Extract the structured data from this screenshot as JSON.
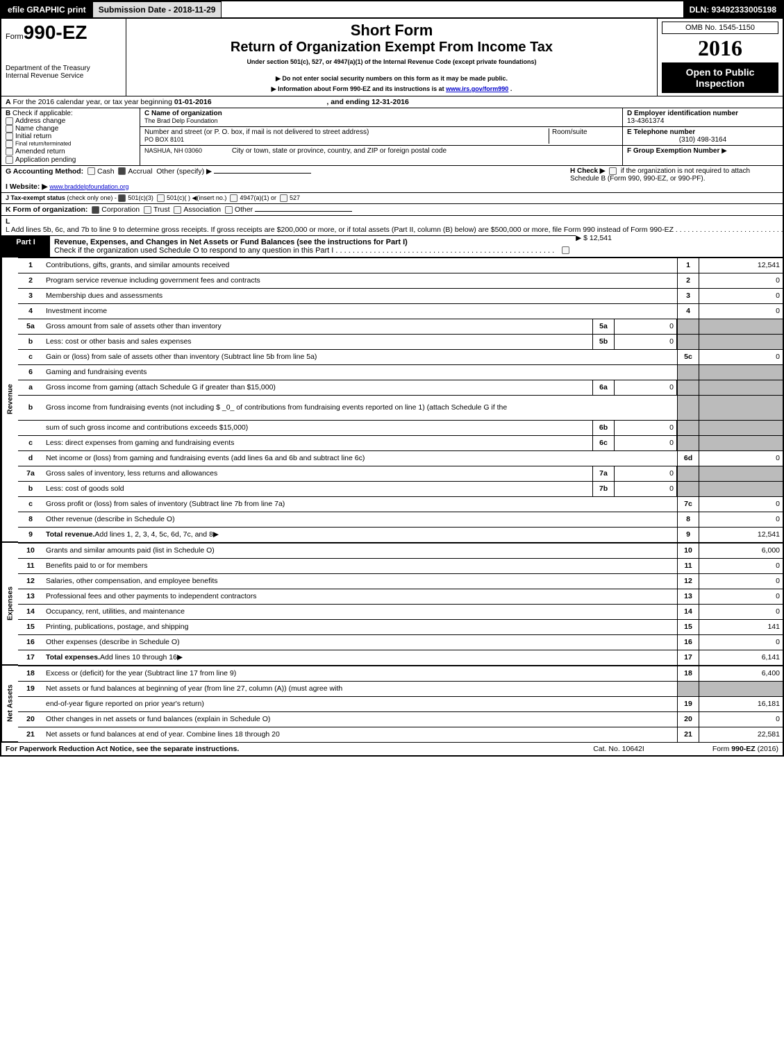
{
  "topbar": {
    "efile": "efile GRAPHIC print",
    "submission": "Submission Date - 2018-11-29",
    "dln": "DLN: 93492333005198"
  },
  "header": {
    "form_prefix": "Form",
    "form_no": "990-EZ",
    "short_form": "Short Form",
    "title": "Return of Organization Exempt From Income Tax",
    "under_section": "Under section 501(c), 527, or 4947(a)(1) of the Internal Revenue Code (except private foundations)",
    "donot": "Do not enter social security numbers on this form as it may be made public.",
    "info": "Information about Form 990-EZ and its instructions is at ",
    "info_link": "www.irs.gov/form990",
    "info_suffix": ".",
    "dept1": "Department of the Treasury",
    "dept2": "Internal Revenue Service",
    "omb": "OMB No. 1545-1150",
    "year": "2016",
    "open": "Open to Public Inspection"
  },
  "line_a": {
    "text_pre": "For the 2016 calendar year, or tax year beginning ",
    "begin": "01-01-2016",
    "mid": ", and ending ",
    "end": "12-31-2016"
  },
  "b": {
    "label": "Check if applicable:",
    "opts": [
      "Address change",
      "Name change",
      "Initial return",
      "Final return/terminated",
      "Amended return",
      "Application pending"
    ]
  },
  "c": {
    "label": "C Name of organization",
    "org": "The Brad Delp Foundation",
    "street_label": "Number and street (or P. O. box, if mail is not delivered to street address)",
    "room_label": "Room/suite",
    "street": "PO BOX 8101",
    "city_label": "City or town, state or province, country, and ZIP or foreign postal code",
    "city": "NASHUA, NH  03060"
  },
  "d": {
    "label": "D Employer identification number",
    "value": "13-4361374"
  },
  "e": {
    "label": "E Telephone number",
    "value": "(310) 498-3164"
  },
  "f": {
    "label": "F Group Exemption Number",
    "arrow": "▶"
  },
  "g": {
    "label": "G Accounting Method:",
    "cash": "Cash",
    "accrual": "Accrual",
    "other": "Other (specify) ▶"
  },
  "h": {
    "label_pre": "H  Check ▶",
    "label_post": "if the organization is not required to attach Schedule B (Form 990, 990-EZ, or 990-PF)."
  },
  "i": {
    "label": "I Website: ▶",
    "value": "www.braddelpfoundation.org"
  },
  "j": {
    "label": "J Tax-exempt status",
    "note": "(check only one) - ",
    "opts": [
      "501(c)(3)",
      "501(c)(  ) ◀(insert no.)",
      "4947(a)(1) or",
      "527"
    ]
  },
  "k": {
    "label": "K Form of organization:",
    "opts": [
      "Corporation",
      "Trust",
      "Association",
      "Other"
    ]
  },
  "l": {
    "text": "L Add lines 5b, 6c, and 7b to line 9 to determine gross receipts. If gross receipts are $200,000 or more, or if total assets (Part II, column (B) below) are $500,000 or more, file Form 990 instead of Form 990-EZ",
    "amount": "▶ $ 12,541"
  },
  "part1": {
    "label": "Part I",
    "title": "Revenue, Expenses, and Changes in Net Assets or Fund Balances (see the instructions for Part I)",
    "check": "Check if the organization used Schedule O to respond to any question in this Part I"
  },
  "sections": {
    "revenue": "Revenue",
    "expenses": "Expenses",
    "netassets": "Net Assets"
  },
  "lines": [
    {
      "n": "1",
      "d": "Contributions, gifts, grants, and similar amounts received",
      "rn": "1",
      "rv": "12,541"
    },
    {
      "n": "2",
      "d": "Program service revenue including government fees and contracts",
      "rn": "2",
      "rv": "0"
    },
    {
      "n": "3",
      "d": "Membership dues and assessments",
      "rn": "3",
      "rv": "0"
    },
    {
      "n": "4",
      "d": "Investment income",
      "rn": "4",
      "rv": "0"
    },
    {
      "n": "5a",
      "d": "Gross amount from sale of assets other than inventory",
      "mn": "5a",
      "mv": "0",
      "shade": true
    },
    {
      "n": "b",
      "d": "Less: cost or other basis and sales expenses",
      "mn": "5b",
      "mv": "0",
      "shade": true
    },
    {
      "n": "c",
      "d": "Gain or (loss) from sale of assets other than inventory (Subtract line 5b from line 5a)",
      "rn": "5c",
      "rv": "0"
    },
    {
      "n": "6",
      "d": "Gaming and fundraising events",
      "shade": true,
      "shaderight": true
    },
    {
      "n": "a",
      "d": "Gross income from gaming (attach Schedule G if greater than $15,000)",
      "mn": "6a",
      "mv": "0",
      "shade": true
    },
    {
      "n": "b",
      "d": "Gross income from fundraising events (not including $ _0_ of contributions from fundraising events reported on line 1) (attach Schedule G if the",
      "shade": true,
      "tall": true
    },
    {
      "n": "",
      "d": "sum of such gross income and contributions exceeds $15,000)",
      "mn": "6b",
      "mv": "0",
      "shade": true
    },
    {
      "n": "c",
      "d": "Less: direct expenses from gaming and fundraising events",
      "mn": "6c",
      "mv": "0",
      "shade": true
    },
    {
      "n": "d",
      "d": "Net income or (loss) from gaming and fundraising events (add lines 6a and 6b and subtract line 6c)",
      "rn": "6d",
      "rv": "0"
    },
    {
      "n": "7a",
      "d": "Gross sales of inventory, less returns and allowances",
      "mn": "7a",
      "mv": "0",
      "shade": true
    },
    {
      "n": "b",
      "d": "Less: cost of goods sold",
      "mn": "7b",
      "mv": "0",
      "shade": true
    },
    {
      "n": "c",
      "d": "Gross profit or (loss) from sales of inventory (Subtract line 7b from line 7a)",
      "rn": "7c",
      "rv": "0"
    },
    {
      "n": "8",
      "d": "Other revenue (describe in Schedule O)",
      "rn": "8",
      "rv": "0"
    },
    {
      "n": "9",
      "d": "Total revenue. Add lines 1, 2, 3, 4, 5c, 6d, 7c, and 8",
      "rn": "9",
      "rv": "12,541",
      "bold": true,
      "arrow": true
    }
  ],
  "exp_lines": [
    {
      "n": "10",
      "d": "Grants and similar amounts paid (list in Schedule O)",
      "rn": "10",
      "rv": "6,000"
    },
    {
      "n": "11",
      "d": "Benefits paid to or for members",
      "rn": "11",
      "rv": "0"
    },
    {
      "n": "12",
      "d": "Salaries, other compensation, and employee benefits",
      "rn": "12",
      "rv": "0"
    },
    {
      "n": "13",
      "d": "Professional fees and other payments to independent contractors",
      "rn": "13",
      "rv": "0"
    },
    {
      "n": "14",
      "d": "Occupancy, rent, utilities, and maintenance",
      "rn": "14",
      "rv": "0"
    },
    {
      "n": "15",
      "d": "Printing, publications, postage, and shipping",
      "rn": "15",
      "rv": "141"
    },
    {
      "n": "16",
      "d": "Other expenses (describe in Schedule O)",
      "rn": "16",
      "rv": "0"
    },
    {
      "n": "17",
      "d": "Total expenses. Add lines 10 through 16",
      "rn": "17",
      "rv": "6,141",
      "bold": true,
      "arrow": true
    }
  ],
  "na_lines": [
    {
      "n": "18",
      "d": "Excess or (deficit) for the year (Subtract line 17 from line 9)",
      "rn": "18",
      "rv": "6,400"
    },
    {
      "n": "19",
      "d": "Net assets or fund balances at beginning of year (from line 27, column (A)) (must agree with",
      "shade": true
    },
    {
      "n": "",
      "d": "end-of-year figure reported on prior year's return)",
      "rn": "19",
      "rv": "16,181"
    },
    {
      "n": "20",
      "d": "Other changes in net assets or fund balances (explain in Schedule O)",
      "rn": "20",
      "rv": "0"
    },
    {
      "n": "21",
      "d": "Net assets or fund balances at end of year. Combine lines 18 through 20",
      "rn": "21",
      "rv": "22,581"
    }
  ],
  "footer": {
    "left": "For Paperwork Reduction Act Notice, see the separate instructions.",
    "center": "Cat. No. 10642I",
    "right_pre": "Form ",
    "right_bold": "990-EZ",
    "right_post": " (2016)"
  }
}
